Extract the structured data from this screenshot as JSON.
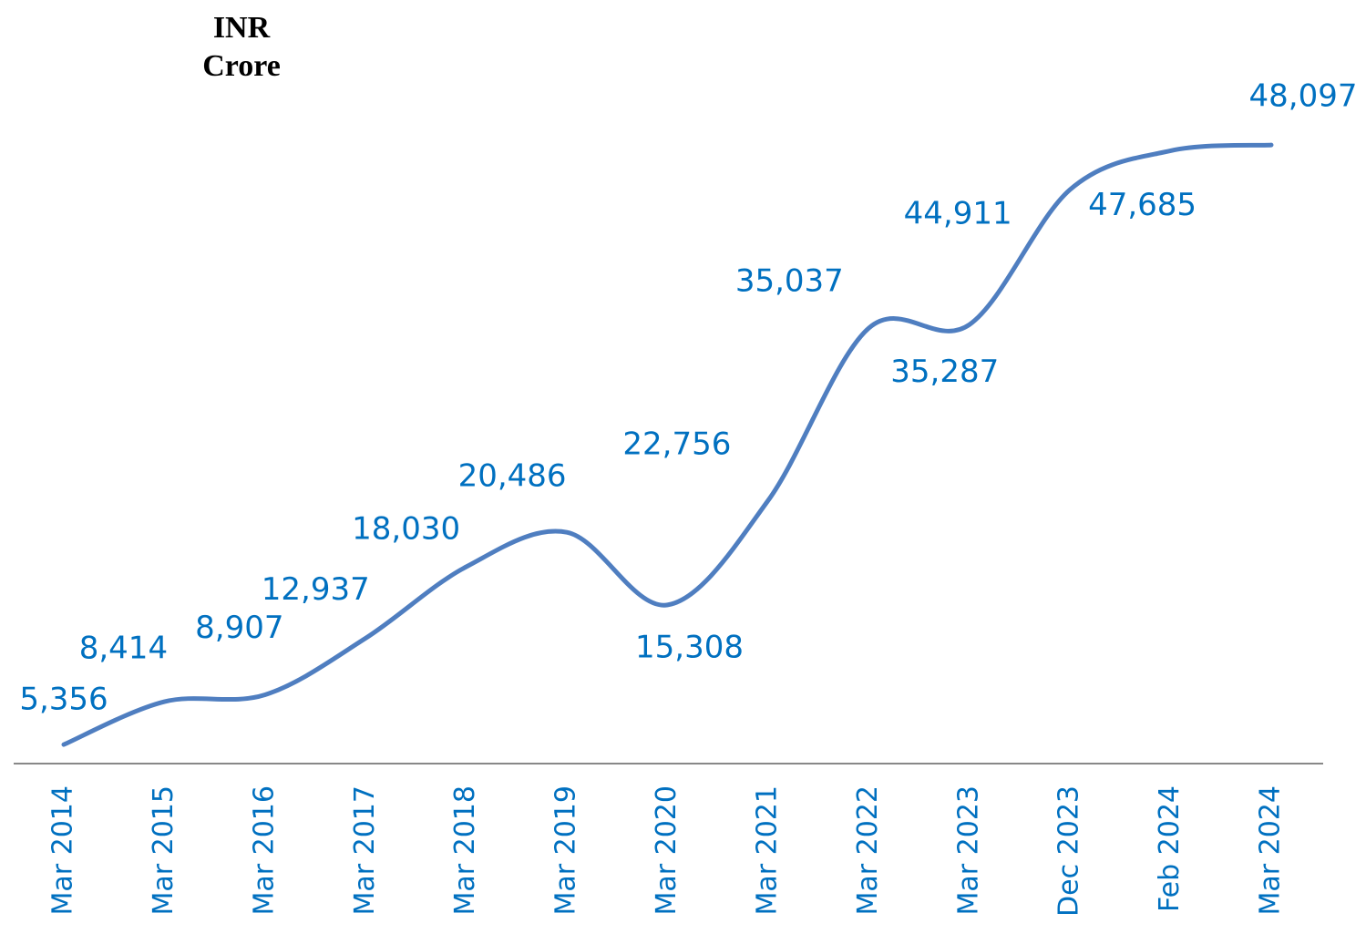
{
  "chart_data": {
    "type": "line",
    "title": "INR Crore",
    "categories": [
      "Mar 2014",
      "Mar 2015",
      "Mar 2016",
      "Mar 2017",
      "Mar 2018",
      "Mar 2019",
      "Mar 2020",
      "Mar 2021",
      "Mar 2022",
      "Mar 2023",
      "Dec 2023",
      "Feb 2024",
      "Mar 2024"
    ],
    "values": [
      5356,
      8414,
      8907,
      12937,
      18030,
      20486,
      15308,
      22756,
      35037,
      35287,
      44911,
      47685,
      48097
    ],
    "value_labels": [
      "5,356",
      "8,414",
      "8,907",
      "12,937",
      "18,030",
      "20,486",
      "15,308",
      "22,756",
      "35,037",
      "35,287",
      "44,911",
      "47,685",
      "48,097"
    ],
    "color": "#4f7ec0",
    "label_color": "#0070c0",
    "ylim": [
      4000,
      52000
    ]
  }
}
